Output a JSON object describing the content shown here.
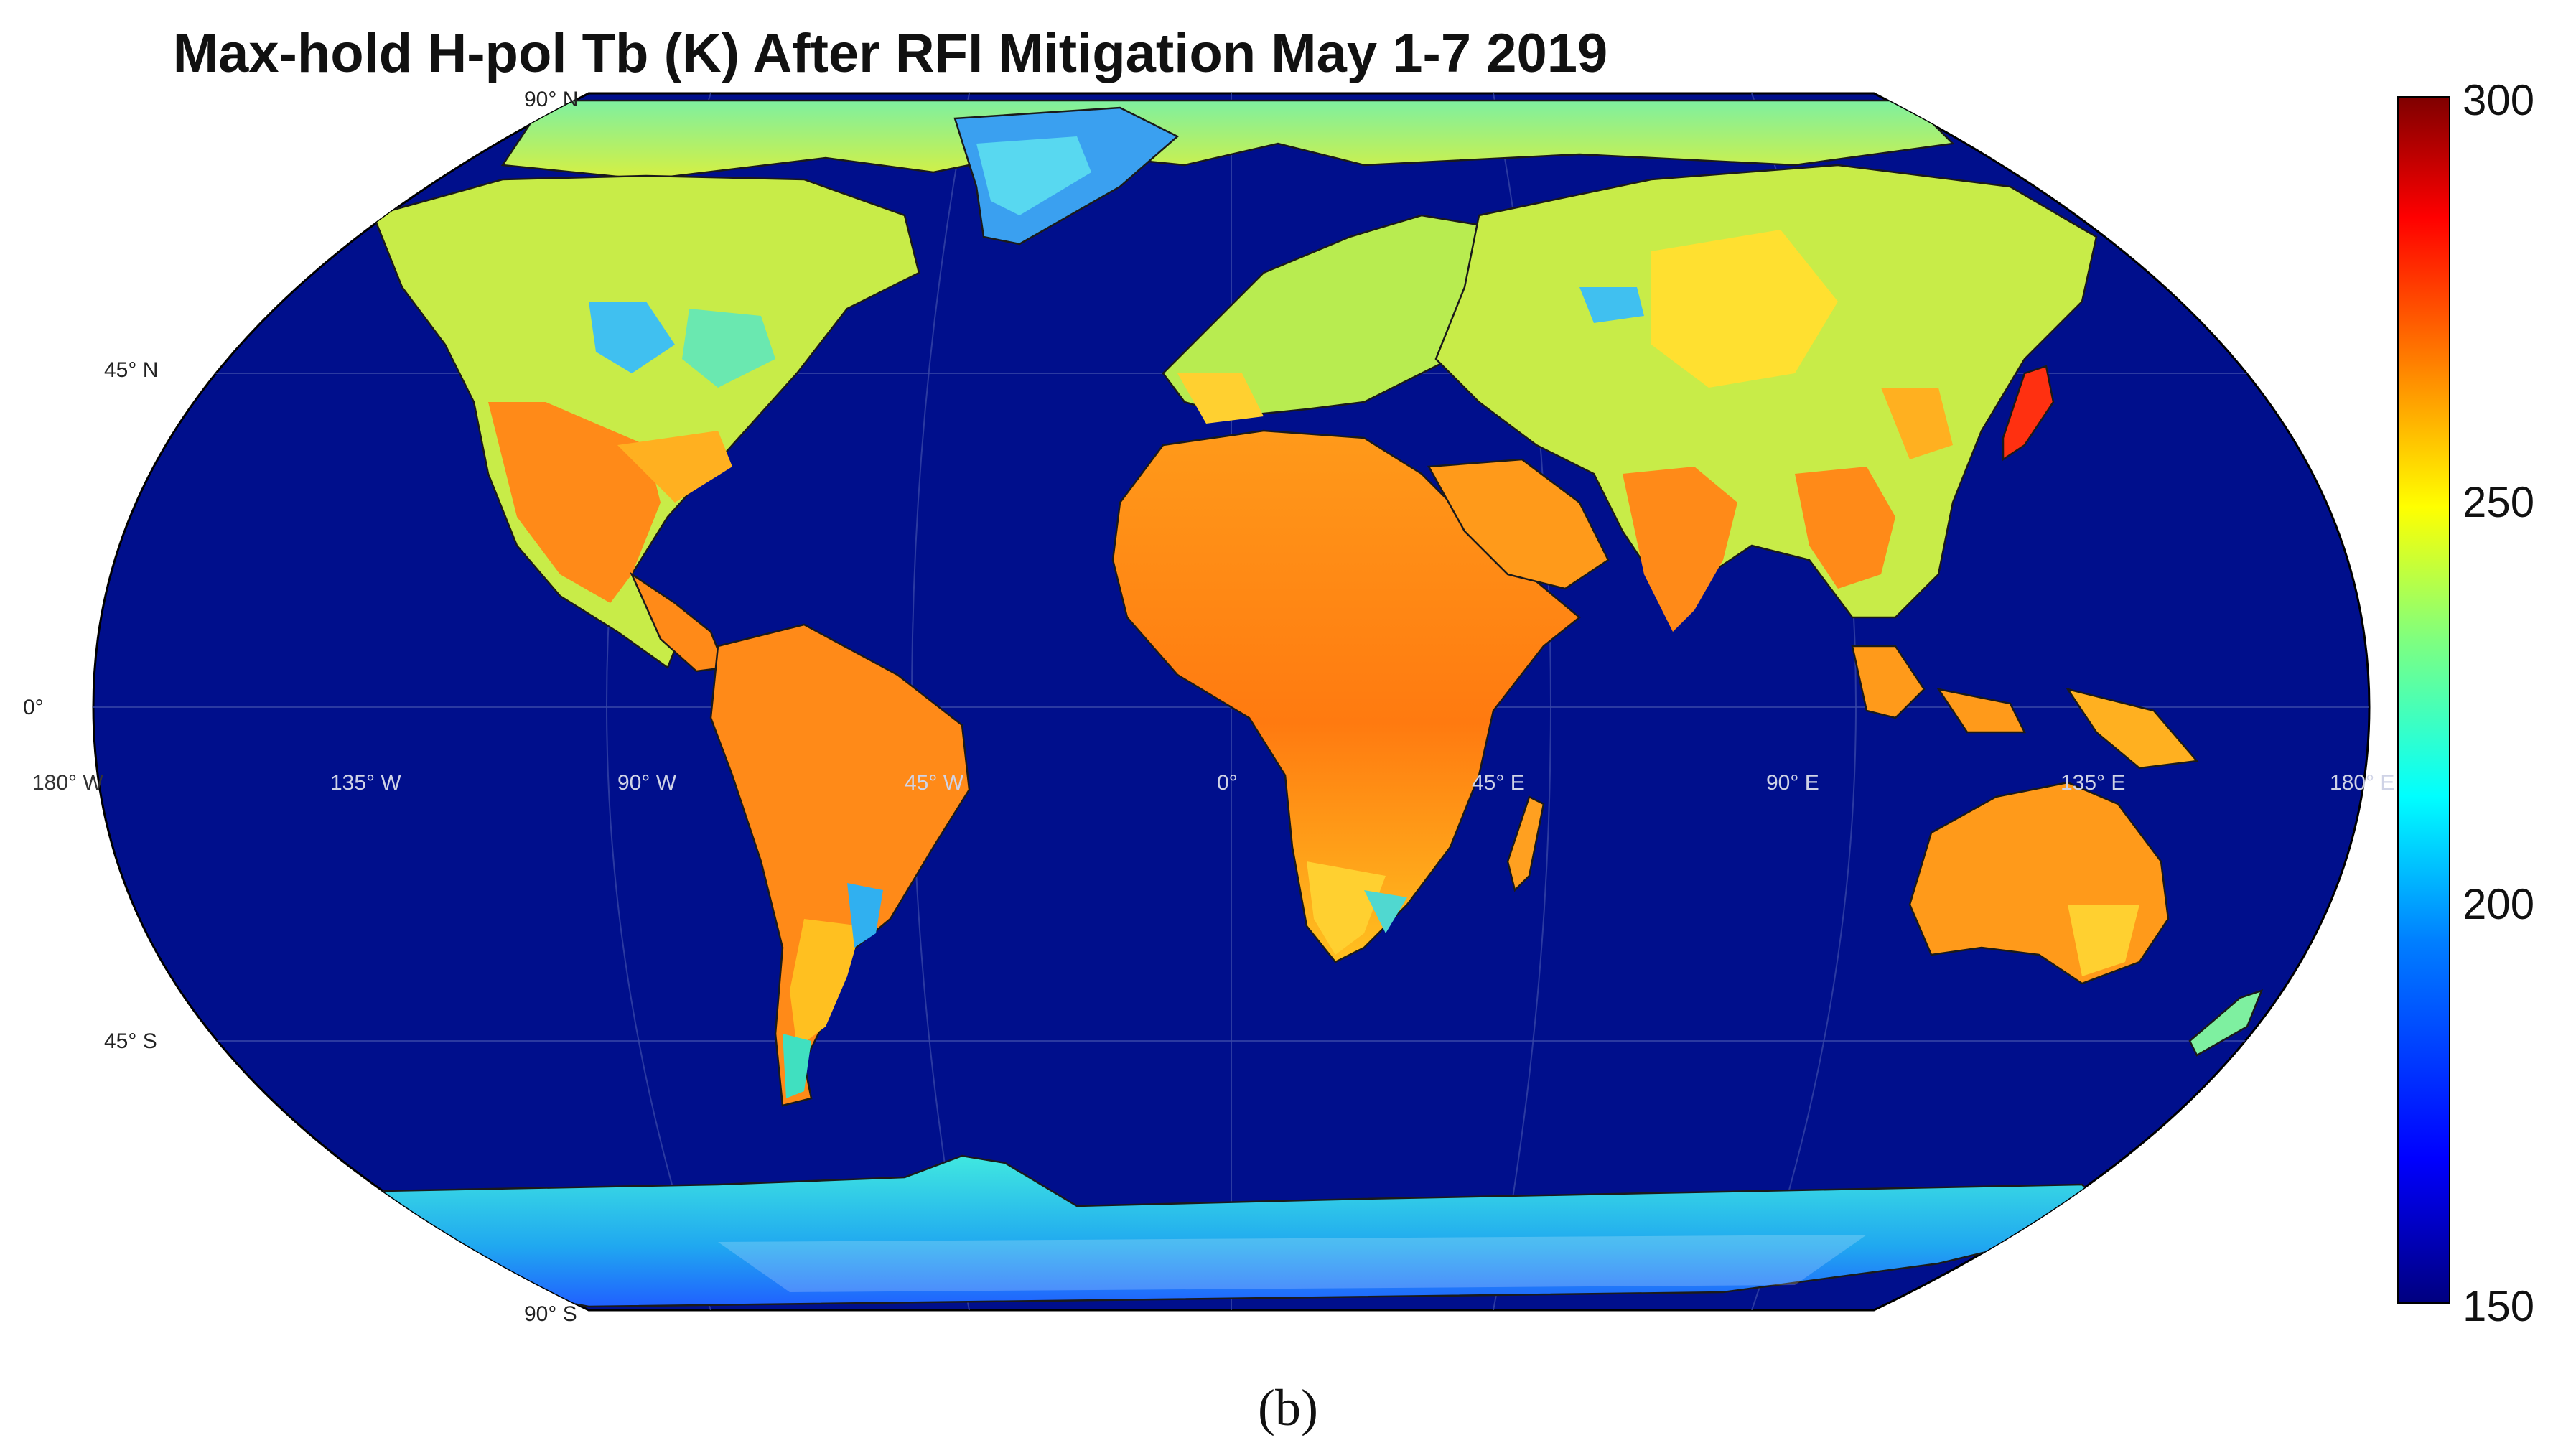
{
  "title": "Max-hold H-pol Tb (K) After RFI Mitigation May 1-7 2019",
  "caption": "(b)",
  "lat_labels": [
    "90° N",
    "45° N",
    "0°",
    "45° S",
    "90° S"
  ],
  "lon_labels": [
    "180° W",
    "135° W",
    "90° W",
    "45° W",
    "0°",
    "45° E",
    "90° E",
    "135° E",
    "180° E"
  ],
  "colorbar": {
    "min": 150,
    "max": 300,
    "ticks": [
      "300",
      "250",
      "200",
      "150"
    ],
    "colormap": "jet",
    "colors": [
      "#00007f",
      "#0000ff",
      "#007fff",
      "#00ffff",
      "#7fff7f",
      "#ffff00",
      "#ff7f00",
      "#ff0000",
      "#7f0000"
    ]
  },
  "ocean_color": "#000f8c"
}
